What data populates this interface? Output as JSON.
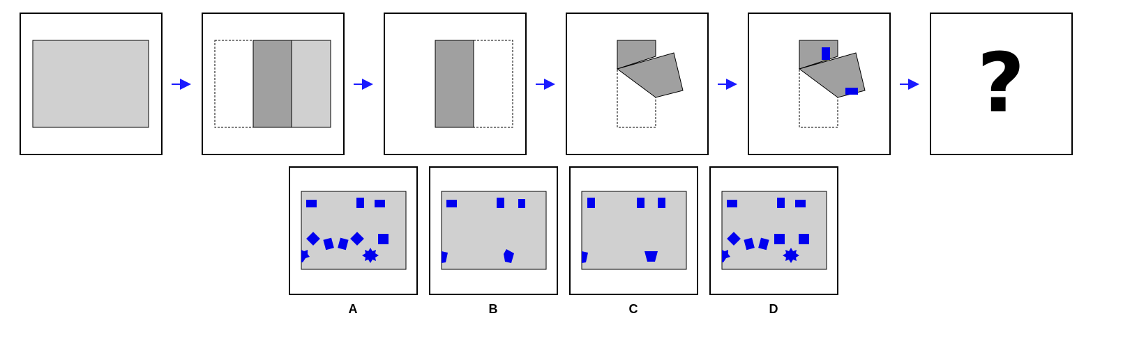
{
  "puzzle": {
    "steps": [
      {
        "id": "step-1"
      },
      {
        "id": "step-2"
      },
      {
        "id": "step-3"
      },
      {
        "id": "step-4"
      },
      {
        "id": "step-5"
      },
      {
        "id": "step-6",
        "symbol": "?"
      }
    ],
    "arrow_color": "#1a1aff"
  },
  "options": [
    {
      "label": "A"
    },
    {
      "label": "B"
    },
    {
      "label": "C"
    },
    {
      "label": "D"
    }
  ],
  "colors": {
    "paper_light": "#d0d0d0",
    "paper_dark": "#a0a0a0",
    "hole": "#0000ee",
    "frame": "#000000"
  }
}
